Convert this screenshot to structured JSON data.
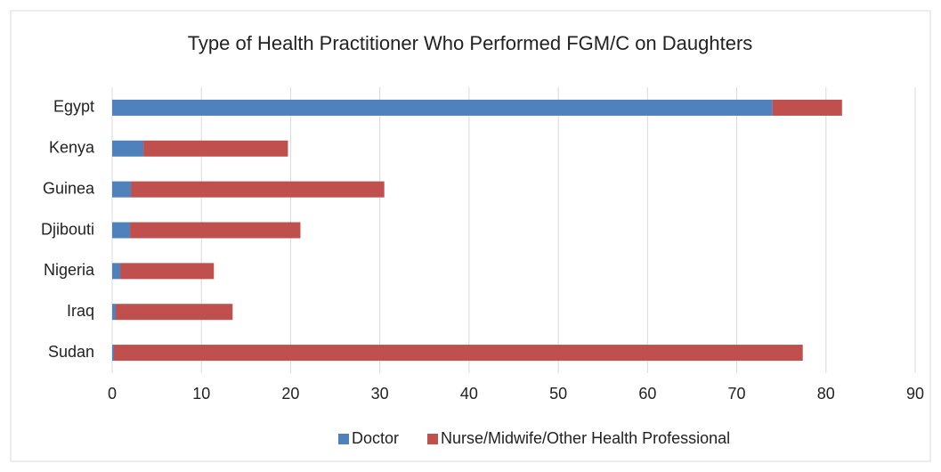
{
  "chart_data": {
    "type": "bar",
    "orientation": "horizontal",
    "stacked": true,
    "title": "Type of Health Practitioner Who Performed FGM/C on Daughters",
    "categories": [
      "Egypt",
      "Kenya",
      "Guinea",
      "Djibouti",
      "Nigeria",
      "Iraq",
      "Sudan"
    ],
    "series": [
      {
        "name": "Doctor",
        "color": "#4f81bd",
        "values": [
          74.0,
          3.5,
          2.1,
          2.0,
          0.9,
          0.4,
          0.2
        ]
      },
      {
        "name": "Nurse/Midwife/Other Health Professional",
        "color": "#c0504d",
        "values": [
          7.8,
          16.2,
          28.4,
          19.1,
          10.5,
          13.1,
          77.2
        ]
      }
    ],
    "xlim": [
      0,
      90
    ],
    "xticks": [
      0,
      10,
      20,
      30,
      40,
      50,
      60,
      70,
      80,
      90
    ],
    "grid": true,
    "legend": "bottom"
  }
}
